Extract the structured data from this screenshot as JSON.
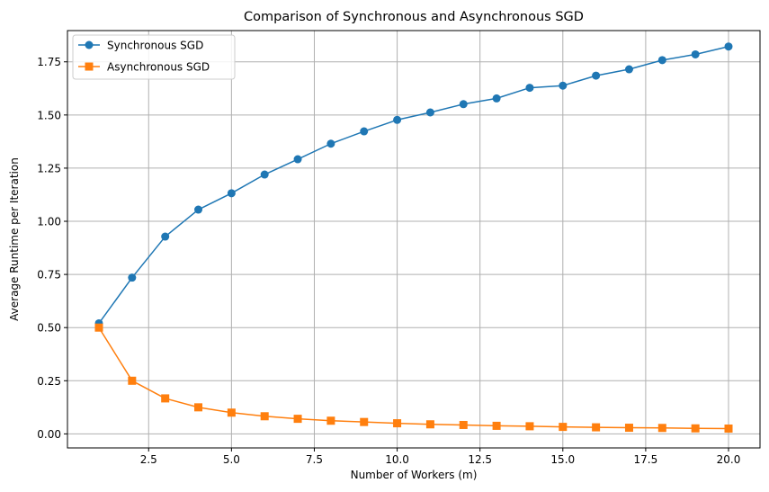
{
  "chart_data": {
    "type": "line",
    "title": "Comparison of Synchronous and Asynchronous SGD",
    "xlabel": "Number of Workers (m)",
    "ylabel": "Average Runtime per Iteration",
    "xlim": [
      0.05,
      20.95
    ],
    "ylim": [
      -0.066,
      1.897
    ],
    "xticks": [
      2.5,
      5.0,
      7.5,
      10.0,
      12.5,
      15.0,
      17.5,
      20.0
    ],
    "xtick_labels": [
      "2.5",
      "5.0",
      "7.5",
      "10.0",
      "12.5",
      "15.0",
      "17.5",
      "20.0"
    ],
    "yticks": [
      0.0,
      0.25,
      0.5,
      0.75,
      1.0,
      1.25,
      1.5,
      1.75
    ],
    "ytick_labels": [
      "0.00",
      "0.25",
      "0.50",
      "0.75",
      "1.00",
      "1.25",
      "1.50",
      "1.75"
    ],
    "grid": true,
    "legend_position": "top-left",
    "x": [
      1,
      2,
      3,
      4,
      5,
      6,
      7,
      8,
      9,
      10,
      11,
      12,
      13,
      14,
      15,
      16,
      17,
      18,
      19,
      20
    ],
    "series": [
      {
        "name": "Synchronous SGD",
        "marker": "circle",
        "color": "#1f77b4",
        "values": [
          0.52,
          0.735,
          0.928,
          1.055,
          1.132,
          1.22,
          1.292,
          1.365,
          1.423,
          1.477,
          1.512,
          1.551,
          1.578,
          1.628,
          1.638,
          1.685,
          1.715,
          1.758,
          1.785,
          1.822
        ]
      },
      {
        "name": "Asynchronous SGD",
        "marker": "square",
        "color": "#ff7f0e",
        "values": [
          0.5,
          0.25,
          0.167,
          0.125,
          0.1,
          0.083,
          0.071,
          0.062,
          0.056,
          0.05,
          0.045,
          0.042,
          0.038,
          0.036,
          0.033,
          0.031,
          0.029,
          0.028,
          0.026,
          0.025
        ]
      }
    ]
  }
}
